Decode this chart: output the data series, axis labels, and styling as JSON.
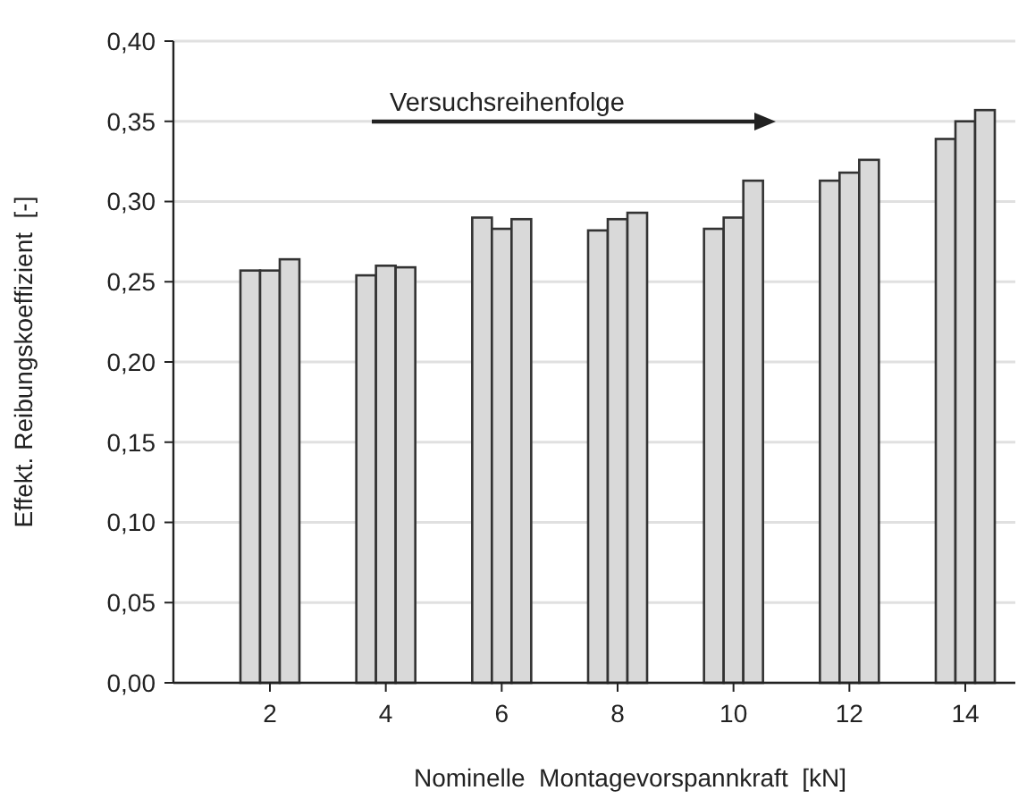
{
  "chart_data": {
    "type": "bar",
    "xlabel": "Nominelle  Montagevorspannkraft  [kN]",
    "ylabel": "Effekt. Reibungskoeffizient  [-]",
    "categories": [
      "2",
      "4",
      "6",
      "8",
      "10",
      "12",
      "14"
    ],
    "series": [
      {
        "color": "#d9d9d9",
        "values": [
          0.257,
          0.254,
          0.29,
          0.282,
          0.283,
          0.313,
          0.339
        ]
      },
      {
        "color": "#d9d9d9",
        "values": [
          0.257,
          0.26,
          0.283,
          0.289,
          0.29,
          0.318,
          0.35
        ]
      },
      {
        "color": "#d9d9d9",
        "values": [
          0.264,
          0.259,
          0.289,
          0.293,
          0.313,
          0.326,
          0.357
        ]
      }
    ],
    "ylim": [
      0,
      0.4
    ],
    "yticks": [
      {
        "value": 0,
        "label": "0,00"
      },
      {
        "value": 0.05,
        "label": "0,05"
      },
      {
        "value": 0.1,
        "label": "0,10"
      },
      {
        "value": 0.15,
        "label": "0,15"
      },
      {
        "value": 0.2,
        "label": "0,20"
      },
      {
        "value": 0.25,
        "label": "0,25"
      },
      {
        "value": 0.3,
        "label": "0,30"
      },
      {
        "value": 0.35,
        "label": "0,35"
      },
      {
        "value": 0.4,
        "label": "0,40"
      }
    ],
    "grid": "y",
    "annotations": [
      "Versuchsreihenfolge"
    ]
  }
}
